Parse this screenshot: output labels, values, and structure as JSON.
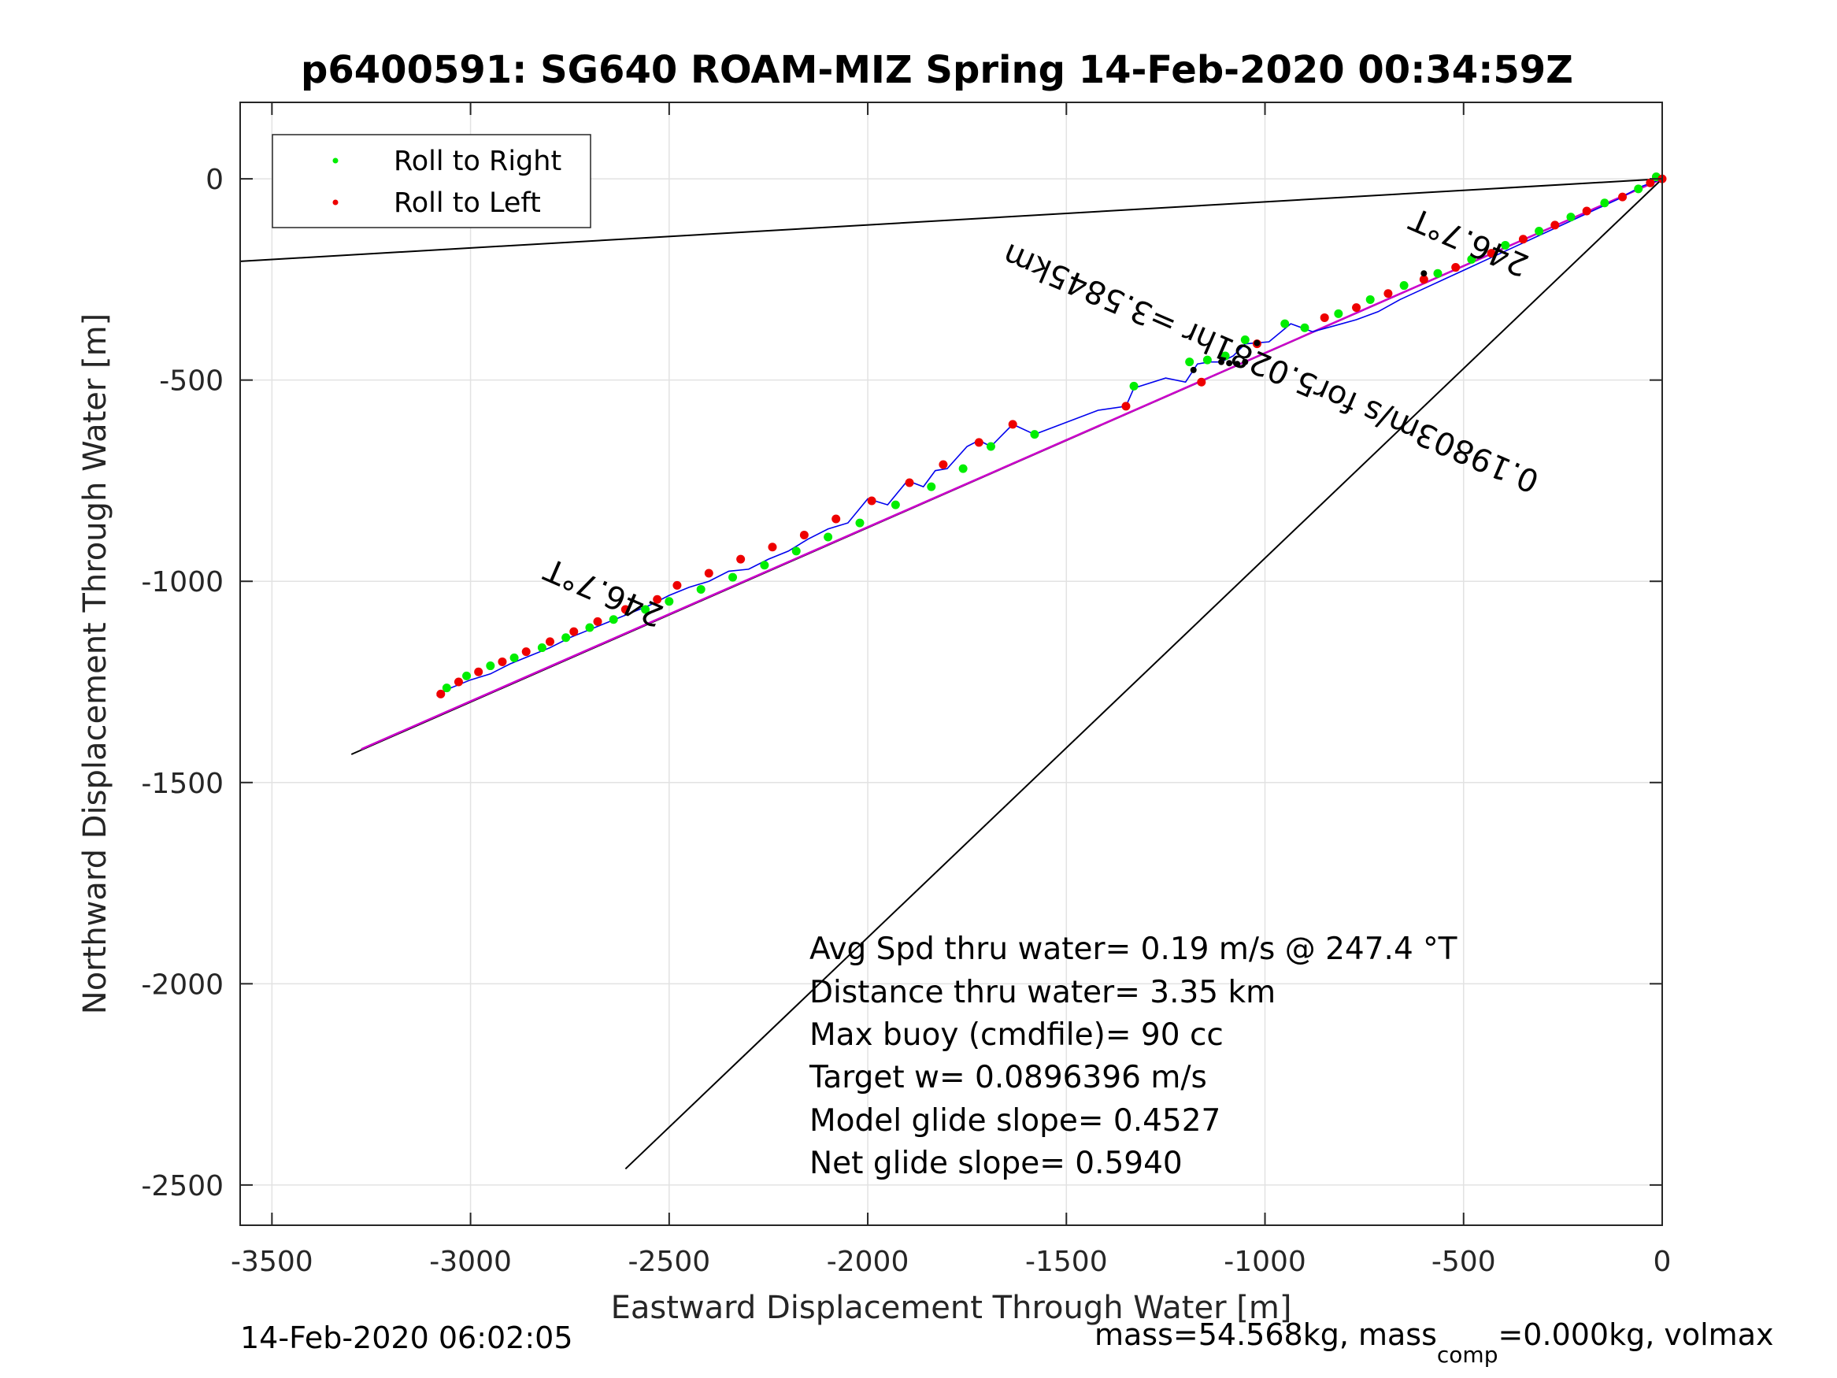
{
  "chart_data": {
    "type": "line",
    "title": "p6400591: SG640 ROAM-MIZ Spring 14-Feb-2020 00:34:59Z",
    "xlabel": "Eastward Displacement Through Water [m]",
    "ylabel": "Northward Displacement Through Water [m]",
    "xlim": [
      -3580,
      0
    ],
    "ylim": [
      -2600,
      190
    ],
    "xticks": [
      -3500,
      -3000,
      -2500,
      -2000,
      -1500,
      -1000,
      -500,
      0
    ],
    "yticks": [
      0,
      -500,
      -1000,
      -1500,
      -2000,
      -2500
    ],
    "grid": true,
    "legend": {
      "placement": "top-left",
      "entries": [
        {
          "label": "Roll to Right",
          "color": "#00ee00"
        },
        {
          "label": "Roll to Left",
          "color": "#ee0000"
        }
      ]
    },
    "colors": {
      "track": "#0000ee",
      "net_line": "#cc00cc",
      "reference_lines": "#000000",
      "roll_right": "#00ee00",
      "roll_left": "#ee0000"
    },
    "reference_lines": [
      {
        "x": [
          0,
          -3580
        ],
        "y": [
          0,
          -205
        ]
      },
      {
        "x": [
          0,
          -3300
        ],
        "y": [
          0,
          -1430
        ]
      },
      {
        "x": [
          0,
          -2610
        ],
        "y": [
          0,
          -2460
        ]
      }
    ],
    "net_displacement_line": {
      "x": [
        0,
        -3275
      ],
      "y": [
        0,
        -1417
      ]
    },
    "track": {
      "x": [
        0,
        -55,
        -110,
        -165,
        -220,
        -275,
        -330,
        -385,
        -440,
        -495,
        -550,
        -605,
        -660,
        -715,
        -770,
        -825,
        -880,
        -935,
        -990,
        -1050,
        -1080,
        -1110,
        -1140,
        -1170,
        -1200,
        -1250,
        -1330,
        -1350,
        -1420,
        -1580,
        -1635,
        -1690,
        -1720,
        -1750,
        -1800,
        -1830,
        -1860,
        -1900,
        -1950,
        -2000,
        -2050,
        -2100,
        -2150,
        -2200,
        -2250,
        -2300,
        -2350,
        -2400,
        -2450,
        -2500,
        -2550,
        -2600,
        -2650,
        -2700,
        -2750,
        -2800,
        -2850,
        -2900,
        -2950,
        -3000,
        -3050,
        -3085
      ],
      "y": [
        0,
        -20,
        -50,
        -75,
        -100,
        -125,
        -150,
        -175,
        -200,
        -225,
        -250,
        -275,
        -300,
        -330,
        -350,
        -365,
        -380,
        -360,
        -405,
        -410,
        -440,
        -455,
        -455,
        -460,
        -505,
        -495,
        -520,
        -565,
        -575,
        -635,
        -610,
        -665,
        -650,
        -665,
        -720,
        -725,
        -765,
        -750,
        -810,
        -795,
        -855,
        -870,
        -895,
        -925,
        -945,
        -970,
        -975,
        -1000,
        -1015,
        -1035,
        -1060,
        -1080,
        -1100,
        -1120,
        -1140,
        -1165,
        -1185,
        -1205,
        -1230,
        -1245,
        -1265,
        -1285
      ]
    },
    "roll_to_right": {
      "x": [
        -15,
        -60,
        -145,
        -230,
        -310,
        -395,
        -480,
        -565,
        -650,
        -735,
        -815,
        -900,
        -950,
        -1050,
        -1100,
        -1145,
        -1190,
        -1330,
        -1580,
        -1690,
        -1760,
        -1840,
        -1930,
        -2020,
        -2100,
        -2180,
        -2260,
        -2340,
        -2420,
        -2500,
        -2560,
        -2640,
        -2700,
        -2760,
        -2820,
        -2890,
        -2950,
        -3010,
        -3060
      ],
      "y": [
        5,
        -25,
        -60,
        -95,
        -130,
        -165,
        -200,
        -235,
        -265,
        -300,
        -335,
        -370,
        -360,
        -400,
        -440,
        -450,
        -455,
        -515,
        -635,
        -665,
        -720,
        -765,
        -810,
        -855,
        -890,
        -925,
        -960,
        -990,
        -1020,
        -1050,
        -1070,
        -1095,
        -1115,
        -1140,
        -1165,
        -1190,
        -1210,
        -1235,
        -1265
      ]
    },
    "roll_to_left": {
      "x": [
        0,
        -30,
        -100,
        -190,
        -270,
        -350,
        -430,
        -520,
        -600,
        -690,
        -770,
        -850,
        -1020,
        -1160,
        -1350,
        -1635,
        -1720,
        -1810,
        -1895,
        -1990,
        -2080,
        -2160,
        -2240,
        -2320,
        -2400,
        -2480,
        -2530,
        -2610,
        -2680,
        -2740,
        -2800,
        -2860,
        -2920,
        -2980,
        -3030,
        -3075
      ],
      "y": [
        0,
        -10,
        -45,
        -80,
        -115,
        -150,
        -185,
        -220,
        -250,
        -285,
        -320,
        -345,
        -410,
        -505,
        -565,
        -610,
        -655,
        -710,
        -755,
        -800,
        -845,
        -885,
        -915,
        -945,
        -980,
        -1010,
        -1045,
        -1070,
        -1100,
        -1125,
        -1150,
        -1175,
        -1200,
        -1225,
        -1250,
        -1280
      ]
    },
    "extra_points": {
      "x": [
        -1180,
        -1110,
        -1090,
        -1070,
        -1050,
        -1020,
        -600
      ],
      "y": [
        -475,
        -455,
        -458,
        -460,
        -455,
        -408,
        -235
      ]
    }
  },
  "annotations": {
    "heading_upper": "246.7°T",
    "heading_lower": "246.7°T",
    "speed_line": "0.19803m/s for5.0281hr =3.5845km"
  },
  "stats": [
    "Avg Spd thru water=  0.19 m/s @ 247.4 °T",
    "Distance thru water=  3.35 km",
    "Max buoy (cmdfile)= 90 cc",
    "Target w= 0.0896396 m/s",
    "Model glide slope= 0.4527",
    "Net glide slope= 0.5940"
  ],
  "footer": {
    "timestamp": "14-Feb-2020 06:02:05",
    "mass_prefix": "mass=54.568kg, mass",
    "mass_subscript": "comp",
    "mass_suffix": "=0.000kg, volmax"
  }
}
